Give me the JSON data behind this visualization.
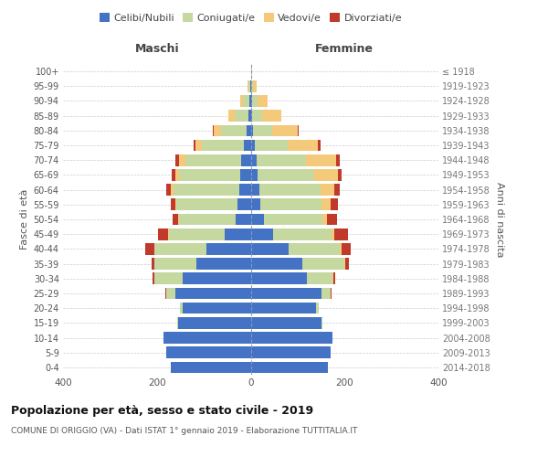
{
  "age_groups": [
    "0-4",
    "5-9",
    "10-14",
    "15-19",
    "20-24",
    "25-29",
    "30-34",
    "35-39",
    "40-44",
    "45-49",
    "50-54",
    "55-59",
    "60-64",
    "65-69",
    "70-74",
    "75-79",
    "80-84",
    "85-89",
    "90-94",
    "95-99",
    "100+"
  ],
  "birth_years": [
    "2014-2018",
    "2009-2013",
    "2004-2008",
    "1999-2003",
    "1994-1998",
    "1989-1993",
    "1984-1988",
    "1979-1983",
    "1974-1978",
    "1969-1973",
    "1964-1968",
    "1959-1963",
    "1954-1958",
    "1949-1953",
    "1944-1948",
    "1939-1943",
    "1934-1938",
    "1929-1933",
    "1924-1928",
    "1919-1923",
    "≤ 1918"
  ],
  "male": {
    "celibi": [
      170,
      180,
      185,
      155,
      145,
      160,
      145,
      115,
      95,
      55,
      32,
      28,
      25,
      22,
      20,
      15,
      9,
      5,
      3,
      1,
      0
    ],
    "coniugati": [
      0,
      0,
      0,
      2,
      5,
      20,
      60,
      90,
      110,
      120,
      120,
      130,
      140,
      130,
      120,
      90,
      55,
      30,
      14,
      4,
      0
    ],
    "vedovi": [
      0,
      0,
      0,
      0,
      0,
      0,
      0,
      1,
      1,
      2,
      2,
      3,
      5,
      8,
      12,
      12,
      14,
      12,
      6,
      2,
      0
    ],
    "divorziati": [
      0,
      0,
      0,
      0,
      0,
      2,
      5,
      5,
      18,
      20,
      12,
      10,
      10,
      8,
      8,
      4,
      2,
      0,
      0,
      0,
      0
    ]
  },
  "female": {
    "nubili": [
      165,
      170,
      175,
      150,
      140,
      150,
      120,
      110,
      80,
      48,
      28,
      20,
      18,
      15,
      12,
      8,
      5,
      3,
      2,
      1,
      0
    ],
    "coniugate": [
      0,
      0,
      0,
      2,
      5,
      20,
      55,
      90,
      110,
      125,
      125,
      130,
      130,
      120,
      105,
      70,
      40,
      22,
      12,
      3,
      0
    ],
    "vedove": [
      0,
      0,
      0,
      0,
      0,
      0,
      1,
      2,
      3,
      5,
      10,
      20,
      30,
      50,
      65,
      65,
      55,
      40,
      22,
      8,
      2
    ],
    "divorziate": [
      0,
      0,
      0,
      0,
      0,
      2,
      5,
      8,
      20,
      30,
      20,
      15,
      12,
      8,
      8,
      5,
      3,
      0,
      0,
      0,
      0
    ]
  },
  "colors": {
    "celibi_nubili": "#4472C4",
    "coniugati": "#c5d8a0",
    "vedovi": "#f5c97a",
    "divorziati": "#c0392b"
  },
  "title": "Popolazione per età, sesso e stato civile - 2019",
  "subtitle": "COMUNE DI ORIGGIO (VA) - Dati ISTAT 1° gennaio 2019 - Elaborazione TUTTITALIA.IT",
  "xlabel_left": "Maschi",
  "xlabel_right": "Femmine",
  "ylabel_left": "Fasce di età",
  "ylabel_right": "Anni di nascita",
  "xlim": 400,
  "background_color": "#ffffff",
  "legend_labels": [
    "Celibi/Nubili",
    "Coniugati/e",
    "Vedovi/e",
    "Divorziati/e"
  ]
}
